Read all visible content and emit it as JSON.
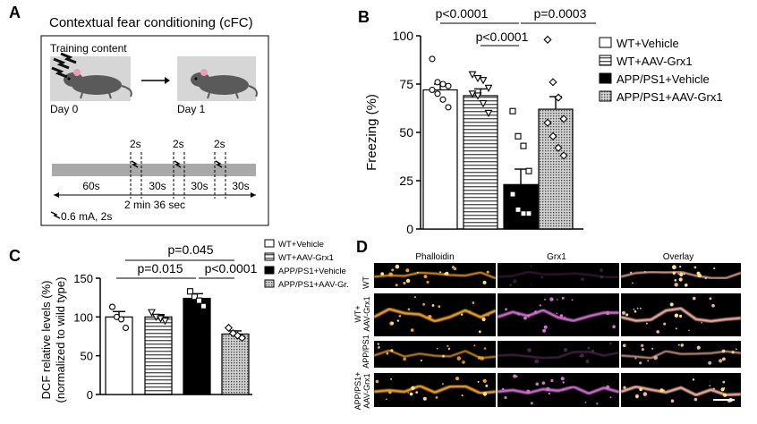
{
  "panels": {
    "A": "A",
    "B": "B",
    "C": "C",
    "D": "D"
  },
  "panelA": {
    "title": "Contextual fear conditioning (cFC)",
    "training_content": "Training content",
    "day0": "Day 0",
    "day1": "Day 1",
    "shock_label": "2s",
    "seg_labels": [
      "60s",
      "30s",
      "30s",
      "30s"
    ],
    "total": "2 min 36 sec",
    "shock_note": "0.6 mA, 2s"
  },
  "panelB": {
    "ylabel": "Freezing (%)",
    "sig": {
      "a": "p<0.0001",
      "b": "p=0.0003",
      "c": "p<0.0001"
    }
  },
  "panelC": {
    "ylabel1": "DCF relative levels (%)",
    "ylabel2": "(normalized to wild type)",
    "sig": {
      "a": "p=0.045",
      "b": "p=0.015",
      "c": "p<0.0001"
    }
  },
  "panelD": {
    "columns": [
      "Phalloidin",
      "Grx1",
      "Overlay"
    ],
    "rows": [
      [
        "WT"
      ],
      [
        "WT+",
        "AAV-Grx1"
      ],
      [
        "APP/PS1"
      ],
      [
        "APP/PS1+",
        "AAV-Grx1"
      ]
    ]
  },
  "colors": {
    "black": "#000000",
    "grey": "#a9a9a9",
    "magenta": "#d070d0",
    "orange": "#f2a22c"
  },
  "chart_data": [
    {
      "type": "bar",
      "title": "",
      "xlabel": "",
      "ylabel": "Freezing (%)",
      "ylim": [
        0,
        100
      ],
      "yticks": [
        "0",
        "25",
        "50",
        "75",
        "100"
      ],
      "categories": [
        "WT+Vehicle",
        "WT+AAV-Grx1",
        "APP/PS1+Vehicle",
        "APP/PS1+AAV-Grx1"
      ],
      "values": [
        72,
        69,
        23,
        62
      ],
      "errors": [
        3,
        3.5,
        8,
        6.5
      ],
      "points": [
        [
          88,
          76,
          75,
          74,
          72,
          70,
          67,
          63
        ],
        [
          80,
          78,
          77,
          73,
          70,
          69,
          65,
          60
        ],
        [
          61,
          48,
          43,
          30,
          18,
          10,
          8,
          8
        ],
        [
          98,
          76,
          68,
          57,
          55,
          48,
          42,
          38
        ]
      ],
      "legend": [
        "WT+Vehicle",
        "WT+AAV-Grx1",
        "APP/PS1+Vehicle",
        "APP/PS1+AAV-Grx1"
      ],
      "legend_position": "right"
    },
    {
      "type": "bar",
      "title": "",
      "xlabel": "",
      "ylabel": "DCF relative levels (%) (normalized to wild type)",
      "ylim": [
        0,
        150
      ],
      "yticks": [
        "0",
        "50",
        "100",
        "150"
      ],
      "categories": [
        "WT+Vehicle",
        "WT+AAV-Grx1",
        "APP/PS1+Vehicle",
        "APP/PS1+AAV-Grx1"
      ],
      "values": [
        100,
        100,
        124,
        78
      ],
      "errors": [
        7,
        3,
        6,
        4
      ],
      "points": [
        [
          113,
          100,
          97,
          86
        ],
        [
          106,
          100,
          98,
          95
        ],
        [
          133,
          126,
          121,
          114
        ],
        [
          86,
          79,
          76,
          73
        ]
      ],
      "legend": [
        "WT+Vehicle",
        "WT+AAV-Grx1",
        "APP/PS1+Vehicle",
        "APP/PS1+AAV-Gr."
      ],
      "legend_position": "top-right"
    }
  ]
}
